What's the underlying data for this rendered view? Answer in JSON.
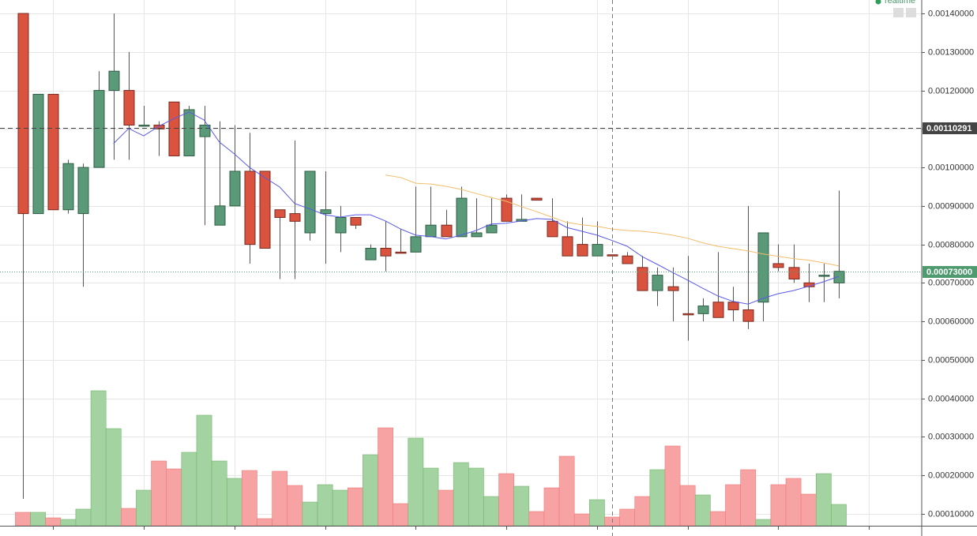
{
  "chart_data": {
    "type": "candlestick",
    "realtime_label": "realtime",
    "categories": [
      null,
      null,
      null,
      null,
      null,
      null,
      null,
      null,
      null,
      null,
      null,
      null,
      null,
      null,
      null,
      null,
      null,
      null,
      null,
      null,
      null,
      null,
      null,
      null,
      null,
      null,
      null,
      null,
      null,
      null,
      null,
      null,
      null,
      null,
      null,
      null,
      null,
      null,
      null,
      null,
      null,
      null,
      null,
      null,
      null,
      null,
      null,
      null,
      null,
      null,
      null,
      null,
      null,
      null,
      null
    ],
    "open": [
      0.0014,
      0.00088,
      0.00119,
      0.00089,
      0.00088,
      0.001,
      0.0012,
      0.0012,
      0.001108,
      0.00111,
      0.00117,
      0.00103,
      0.00108,
      0.00085,
      0.0009,
      0.00099,
      0.00099,
      0.00089,
      0.00088,
      0.00083,
      0.00088,
      0.00083,
      0.00087,
      0.00076,
      0.00079,
      0.00078,
      0.00078,
      0.00082,
      0.00085,
      0.00082,
      0.00082,
      0.00083,
      0.00092,
      0.00086,
      0.00092,
      0.00086,
      0.00082,
      0.0008,
      0.00077,
      0.000773,
      0.00077,
      0.00074,
      0.00068,
      0.00069,
      0.00062,
      0.00062,
      0.00065,
      0.00065,
      0.00063,
      0.00065,
      0.00075,
      0.00074,
      0.0007,
      0.000718,
      0.0007
    ],
    "high": [
      0.0014,
      0.00119,
      0.00119,
      0.00102,
      0.00101,
      0.00125,
      0.0014,
      0.0013,
      0.00116,
      0.00112,
      0.00117,
      0.00116,
      0.00116,
      0.00112,
      0.00111,
      0.00109,
      0.00099,
      0.00089,
      0.00107,
      0.00099,
      0.00099,
      0.0009,
      0.00087,
      0.0008,
      0.00086,
      0.00084,
      0.00095,
      0.00095,
      0.00089,
      0.00095,
      0.00092,
      0.00092,
      0.00093,
      0.00093,
      0.00092,
      0.00092,
      0.00086,
      0.00087,
      0.00086,
      0.000773,
      0.00078,
      0.00077,
      0.00074,
      0.00074,
      0.00077,
      0.00066,
      0.00078,
      0.00069,
      0.0009,
      0.00083,
      0.0008,
      0.0008,
      0.00075,
      0.00075,
      0.00094
    ],
    "low": [
      0.000139,
      0.00088,
      0.00089,
      0.00088,
      0.00069,
      0.001,
      0.00102,
      0.00102,
      0.001108,
      0.00103,
      0.00103,
      0.00103,
      0.00085,
      0.00085,
      0.0009,
      0.00075,
      0.00079,
      0.00071,
      0.00071,
      0.00081,
      0.00075,
      0.00078,
      0.00084,
      0.00076,
      0.00073,
      0.000778,
      0.00078,
      0.00082,
      0.00082,
      0.00082,
      0.00082,
      0.00083,
      0.00086,
      0.00086,
      0.000915,
      0.00082,
      0.00077,
      0.00077,
      0.00077,
      0.000767,
      0.00075,
      0.00068,
      0.00064,
      0.0006,
      0.00055,
      0.0006,
      0.00061,
      0.0006,
      0.00058,
      0.0006,
      0.00073,
      0.0007,
      0.00065,
      0.00065,
      0.00066
    ],
    "close": [
      0.00088,
      0.00119,
      0.00089,
      0.00101,
      0.001,
      0.0012,
      0.00125,
      0.00111,
      0.00111,
      0.0011,
      0.00103,
      0.00115,
      0.00111,
      0.0009,
      0.00099,
      0.0008,
      0.00079,
      0.00087,
      0.00086,
      0.00099,
      0.00089,
      0.00087,
      0.00085,
      0.00079,
      0.00077,
      0.000778,
      0.00082,
      0.00085,
      0.00082,
      0.00092,
      0.00083,
      0.00085,
      0.00086,
      0.000865,
      0.000915,
      0.00082,
      0.00077,
      0.00077,
      0.0008,
      0.00077,
      0.00075,
      0.00068,
      0.00072,
      0.00068,
      0.000617,
      0.00064,
      0.00061,
      0.00063,
      0.0006,
      0.00083,
      0.00074,
      0.00071,
      0.00069,
      0.00072,
      0.00073
    ],
    "up_color": "#5b9a78",
    "down_color": "#d9533f",
    "volume": [
      17,
      17,
      10,
      8,
      21,
      171,
      123,
      22,
      45,
      82,
      72,
      93,
      140,
      82,
      60,
      70,
      9,
      69,
      51,
      30,
      52,
      45,
      48,
      90,
      124,
      28,
      111,
      73,
      45,
      80,
      73,
      37,
      66,
      50,
      18,
      48,
      88,
      15,
      33,
      11,
      21,
      37,
      71,
      101,
      51,
      39,
      18,
      52,
      71,
      8,
      52,
      60,
      40,
      66,
      27
    ],
    "volume_up_color": "#a4d3a2",
    "volume_down_color": "#f7a3a3",
    "y2lim": [
      0,
      186
    ],
    "lines": [
      {
        "color": "#5a5ae6",
        "values": [
          null,
          null,
          null,
          null,
          null,
          null,
          0.001062,
          0.001101,
          0.001082,
          0.001107,
          0.001127,
          0.001144,
          0.001123,
          0.001066,
          0.001035,
          0.001,
          0.000974,
          0.000949,
          0.000906,
          0.000892,
          0.000877,
          0.000871,
          0.000877,
          0.000877,
          0.000861,
          0.00084,
          0.000824,
          0.00082,
          0.000814,
          0.000824,
          0.000836,
          0.000853,
          0.000855,
          0.000861,
          0.000867,
          0.000865,
          0.000844,
          0.000834,
          0.000824,
          0.00081,
          0.000795,
          0.000768,
          0.000748,
          0.000727,
          0.000707,
          0.000686,
          0.000666,
          0.000652,
          0.000645,
          0.00066,
          0.000672,
          0.00068,
          0.000691,
          0.000703,
          0.000717
        ]
      },
      {
        "color": "#f2bd6b",
        "values": [
          null,
          null,
          null,
          null,
          null,
          null,
          null,
          null,
          null,
          null,
          null,
          null,
          null,
          null,
          null,
          null,
          null,
          null,
          null,
          null,
          null,
          null,
          null,
          null,
          0.00098,
          0.000974,
          0.000959,
          0.000957,
          0.000951,
          0.000943,
          0.000932,
          0.000922,
          0.000912,
          0.000898,
          0.000885,
          0.000871,
          0.000857,
          0.000851,
          0.000847,
          0.00084,
          0.000836,
          0.000834,
          0.00083,
          0.000824,
          0.000816,
          0.000804,
          0.000795,
          0.000789,
          0.000783,
          0.000775,
          0.000769,
          0.000763,
          0.000759,
          0.000752,
          0.000744
        ]
      }
    ],
    "price_lines": [
      {
        "value": 0.00110291,
        "label": "0.00110291",
        "color": "#444444",
        "style": "dashed"
      },
      {
        "value": 0.00073,
        "label": "0.00073000",
        "color": "#4f9a6e",
        "style": "dotted"
      }
    ],
    "ylim": [
      6.9e-05,
      0.001435
    ],
    "yticks": [
      {
        "value": 0.0001,
        "label": "0.00010000"
      },
      {
        "value": 0.0002,
        "label": "0.00020000"
      },
      {
        "value": 0.0003,
        "label": "0.00030000"
      },
      {
        "value": 0.0004,
        "label": "0.00040000"
      },
      {
        "value": 0.0005,
        "label": "0.00050000"
      },
      {
        "value": 0.0006,
        "label": "0.00060000"
      },
      {
        "value": 0.0007,
        "label": "0.00070000"
      },
      {
        "value": 0.0008,
        "label": "0.00080000"
      },
      {
        "value": 0.0009,
        "label": "0.00090000"
      },
      {
        "value": 0.001,
        "label": "0.00100000"
      },
      {
        "value": 0.0011,
        "label": "0.00110000"
      },
      {
        "value": 0.0012,
        "label": "0.00120000"
      },
      {
        "value": 0.0013,
        "label": "0.00130000"
      },
      {
        "value": 0.0014,
        "label": "0.00140000"
      }
    ],
    "grid": true
  }
}
